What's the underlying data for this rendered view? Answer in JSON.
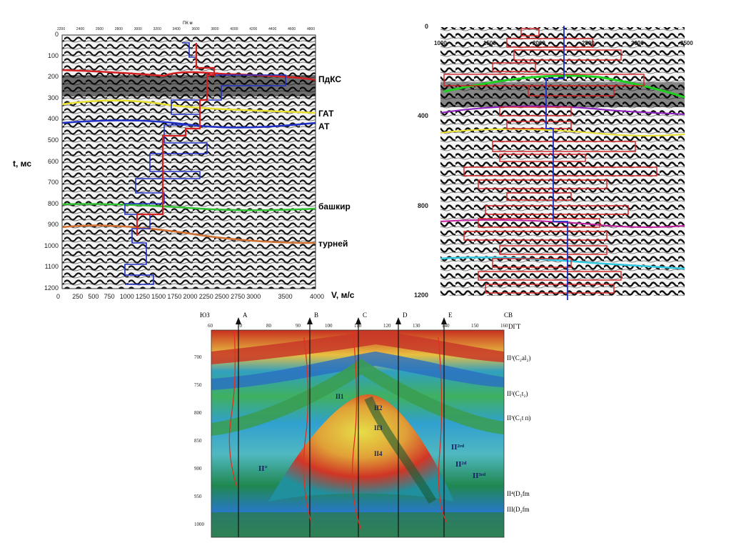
{
  "panel1": {
    "y_axis_label": "t, мс",
    "x_axis_label": "V, м/с",
    "y_ticks": [
      "0",
      "100",
      "200",
      "300",
      "400",
      "500",
      "600",
      "700",
      "800",
      "900",
      "1000",
      "1100",
      "1200"
    ],
    "x_ticks": [
      "0",
      "250",
      "500",
      "750",
      "1000",
      "1250",
      "1500",
      "1750",
      "2000",
      "2250",
      "2500",
      "2750",
      "3000",
      "3500",
      "4000"
    ],
    "top_ticks": [
      "2200",
      "2400",
      "2600",
      "2800",
      "3000",
      "3200",
      "3400",
      "3600",
      "3800",
      "4000",
      "4200",
      "4400",
      "4600",
      "4800"
    ],
    "top_label": "ПК м",
    "horizons": [
      {
        "name": "ПдКС",
        "color": "#d42020"
      },
      {
        "name": "ГАТ",
        "color": "#e8e030"
      },
      {
        "name": "АТ",
        "color": "#2030c8"
      },
      {
        "name": "башкир",
        "color": "#30c030"
      },
      {
        "name": "турней",
        "color": "#d07030"
      }
    ]
  },
  "panel2": {
    "y_ticks": [
      "0",
      "400",
      "800",
      "1200"
    ],
    "x_ticks": [
      "1000",
      "1500",
      "2000",
      "2500",
      "3000",
      "3500"
    ],
    "horizon_colors": [
      "#20d020",
      "#9020c0",
      "#e8e030",
      "#c020a0",
      "#30c8e0"
    ]
  },
  "panel3": {
    "left_corner": "ЮЗ",
    "right_corner": "СВ",
    "x_label": "DГТ",
    "wells": [
      "A",
      "B",
      "C",
      "D",
      "E"
    ],
    "top_ticks": [
      "60",
      "70",
      "80",
      "90",
      "100",
      "110",
      "120",
      "130",
      "140",
      "150",
      "160"
    ],
    "y_ticks": [
      "700",
      "750",
      "800",
      "850",
      "900",
      "950",
      "1000"
    ],
    "right_labels": [
      "II¹(C₂al₂)",
      "II²(C₁t₂)",
      "II³(C₁t п)",
      "II⁴(D₃fm",
      "III(D₂fm"
    ],
    "inner_labels": [
      "II1",
      "II2",
      "II3",
      "II4",
      "II°",
      "II²ʳᵈ",
      "II²ᵈ",
      "II³ʳᵈ"
    ]
  }
}
